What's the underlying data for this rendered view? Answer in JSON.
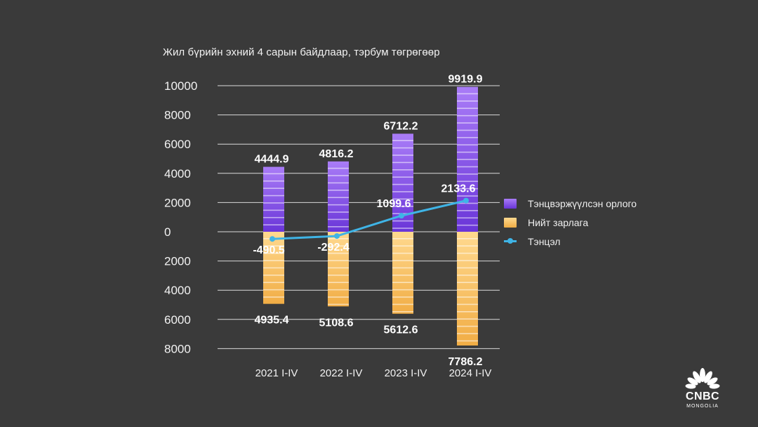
{
  "subtitle": "Жил бүрийн эхний 4 сарын байдлаар, тэрбум төгрөгөөр",
  "logo": {
    "name": "CNBC",
    "sub": "MONGOLIA"
  },
  "colors": {
    "revenue_top": "#9d6bf5",
    "revenue_bottom": "#6a36d8",
    "expense_top": "#ffd88a",
    "expense_bottom": "#f3b04a",
    "balance": "#3fb4e6",
    "grid": "#d9d9d9",
    "text": "#ffffff"
  },
  "chart_data": {
    "type": "bar",
    "categories": [
      "2021 I-IV",
      "2022 I-IV",
      "2023 I-IV",
      "2024 I-IV"
    ],
    "series": [
      {
        "name": "Тэнцвэржүүлсэн орлого",
        "type": "bar",
        "values": [
          4444.9,
          4816.2,
          6712.2,
          9919.9
        ],
        "labels": [
          "4444.9",
          "4816.2",
          "6712.2",
          "9919.9"
        ]
      },
      {
        "name": "Нийт зарлага",
        "type": "bar",
        "direction": "down",
        "values": [
          4935.4,
          5108.6,
          5612.6,
          7786.2
        ],
        "labels": [
          "4935.4",
          "5108.6",
          "5612.6",
          "7786.2"
        ]
      },
      {
        "name": "Тэнцэл",
        "type": "line",
        "values": [
          -490.5,
          -292.4,
          1099.6,
          2133.6
        ],
        "labels": [
          "-490.5",
          "-292.4",
          "1099.6",
          "2133.6"
        ]
      }
    ],
    "y_ticks_up": [
      "10000",
      "8000",
      "6000",
      "4000",
      "2000",
      "0"
    ],
    "y_ticks_down": [
      "2000",
      "4000",
      "6000",
      "8000"
    ],
    "ylim": [
      -8000,
      10000
    ],
    "grid": true,
    "legend_position": "right"
  }
}
